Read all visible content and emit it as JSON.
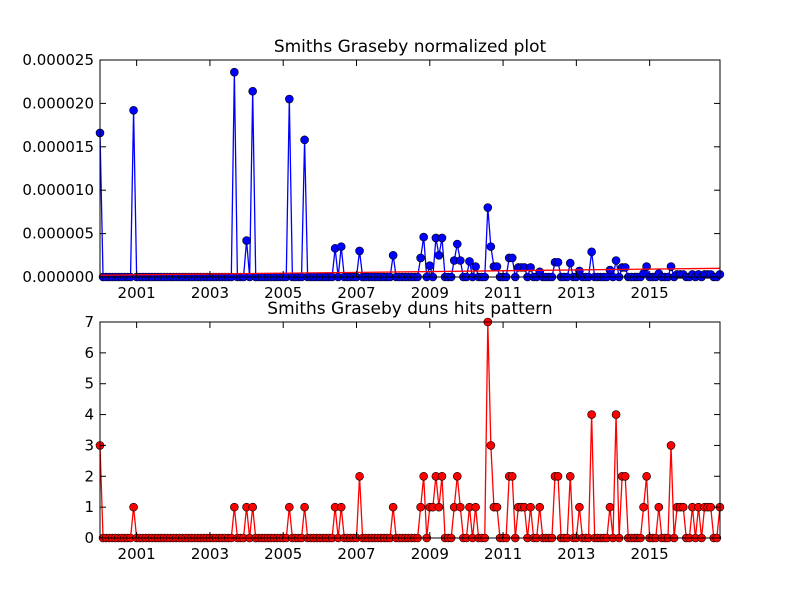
{
  "chart_data": [
    {
      "type": "line",
      "title": "Smiths Graseby normalized plot",
      "xlabel": "",
      "ylabel": "",
      "xlim": [
        2000.0,
        2016.92
      ],
      "ylim": [
        0,
        2.5e-05
      ],
      "grid": false,
      "x_tick_labels": [
        "2001",
        "2003",
        "2005",
        "2007",
        "2009",
        "2011",
        "2013",
        "2015"
      ],
      "y_tick_labels": [
        "0.000000",
        "0.000005",
        "0.000010",
        "0.000015",
        "0.000020",
        "0.000025"
      ],
      "series": [
        {
          "color": "#0000ff",
          "marker": "circle",
          "points": [
            [
              2000.0,
              1.66e-05
            ],
            [
              2000.92,
              1.92e-05
            ],
            [
              2003.67,
              2.36e-05
            ],
            [
              2004.0,
              4.2e-06
            ],
            [
              2004.17,
              2.14e-05
            ],
            [
              2005.17,
              2.05e-05
            ],
            [
              2005.58,
              1.58e-05
            ],
            [
              2006.42,
              3.3e-06
            ],
            [
              2006.58,
              3.5e-06
            ],
            [
              2007.08,
              3e-06
            ],
            [
              2008.0,
              2.5e-06
            ],
            [
              2008.75,
              2.2e-06
            ],
            [
              2008.83,
              4.6e-06
            ],
            [
              2009.0,
              1.3e-06
            ],
            [
              2009.17,
              4.5e-06
            ],
            [
              2009.25,
              2.5e-06
            ],
            [
              2009.33,
              4.5e-06
            ],
            [
              2009.67,
              1.9e-06
            ],
            [
              2009.75,
              3.8e-06
            ],
            [
              2009.83,
              1.9e-06
            ],
            [
              2010.08,
              1.8e-06
            ],
            [
              2010.25,
              1.2e-06
            ],
            [
              2010.58,
              8e-06
            ],
            [
              2010.67,
              3.5e-06
            ],
            [
              2010.75,
              1.2e-06
            ],
            [
              2010.83,
              1.2e-06
            ],
            [
              2011.17,
              2.2e-06
            ],
            [
              2011.25,
              2.2e-06
            ],
            [
              2011.42,
              1.1e-06
            ],
            [
              2011.5,
              1.1e-06
            ],
            [
              2011.58,
              1.1e-06
            ],
            [
              2011.75,
              1.1e-06
            ],
            [
              2012.0,
              6e-07
            ],
            [
              2012.42,
              1.7e-06
            ],
            [
              2012.5,
              1.7e-06
            ],
            [
              2012.83,
              1.6e-06
            ],
            [
              2013.08,
              7e-07
            ],
            [
              2013.42,
              2.9e-06
            ],
            [
              2013.92,
              8e-07
            ],
            [
              2014.08,
              1.9e-06
            ],
            [
              2014.25,
              1.1e-06
            ],
            [
              2014.33,
              1.1e-06
            ],
            [
              2014.83,
              4e-07
            ],
            [
              2014.92,
              1.2e-06
            ],
            [
              2015.25,
              4e-07
            ],
            [
              2015.58,
              1.2e-06
            ],
            [
              2015.75,
              3e-07
            ],
            [
              2015.83,
              3e-07
            ],
            [
              2015.92,
              3e-07
            ],
            [
              2016.17,
              3e-07
            ],
            [
              2016.33,
              3e-07
            ],
            [
              2016.5,
              3e-07
            ],
            [
              2016.58,
              3e-07
            ],
            [
              2016.67,
              3e-07
            ],
            [
              2016.92,
              3e-07
            ]
          ]
        },
        {
          "color": "#ff0000",
          "marker": "none",
          "points": [
            [
              2000.0,
              2e-07
            ],
            [
              2016.92,
              1e-06
            ]
          ]
        }
      ]
    },
    {
      "type": "line",
      "title": "Smiths Graseby duns hits pattern",
      "xlabel": "",
      "ylabel": "",
      "xlim": [
        2000.0,
        2016.92
      ],
      "ylim": [
        0,
        7
      ],
      "grid": false,
      "x_tick_labels": [
        "2001",
        "2003",
        "2005",
        "2007",
        "2009",
        "2011",
        "2013",
        "2015"
      ],
      "y_tick_labels": [
        "0",
        "1",
        "2",
        "3",
        "4",
        "5",
        "6",
        "7"
      ],
      "series": [
        {
          "color": "#ff0000",
          "marker": "circle",
          "points": [
            [
              2000.0,
              3
            ],
            [
              2000.92,
              1
            ],
            [
              2003.67,
              1
            ],
            [
              2004.0,
              1
            ],
            [
              2004.17,
              1
            ],
            [
              2005.17,
              1
            ],
            [
              2005.58,
              1
            ],
            [
              2006.42,
              1
            ],
            [
              2006.58,
              1
            ],
            [
              2007.08,
              2
            ],
            [
              2008.0,
              1
            ],
            [
              2008.75,
              1
            ],
            [
              2008.83,
              2
            ],
            [
              2009.0,
              1
            ],
            [
              2009.08,
              1
            ],
            [
              2009.17,
              2
            ],
            [
              2009.25,
              1
            ],
            [
              2009.33,
              2
            ],
            [
              2009.67,
              1
            ],
            [
              2009.75,
              2
            ],
            [
              2009.83,
              1
            ],
            [
              2010.08,
              1
            ],
            [
              2010.25,
              1
            ],
            [
              2010.58,
              7
            ],
            [
              2010.67,
              3
            ],
            [
              2010.75,
              1
            ],
            [
              2010.83,
              1
            ],
            [
              2011.17,
              2
            ],
            [
              2011.25,
              2
            ],
            [
              2011.42,
              1
            ],
            [
              2011.5,
              1
            ],
            [
              2011.58,
              1
            ],
            [
              2011.75,
              1
            ],
            [
              2012.0,
              1
            ],
            [
              2012.42,
              2
            ],
            [
              2012.5,
              2
            ],
            [
              2012.83,
              2
            ],
            [
              2013.08,
              1
            ],
            [
              2013.42,
              4
            ],
            [
              2013.92,
              1
            ],
            [
              2014.08,
              4
            ],
            [
              2014.25,
              2
            ],
            [
              2014.33,
              2
            ],
            [
              2014.83,
              1
            ],
            [
              2014.92,
              2
            ],
            [
              2015.25,
              1
            ],
            [
              2015.58,
              3
            ],
            [
              2015.75,
              1
            ],
            [
              2015.83,
              1
            ],
            [
              2015.92,
              1
            ],
            [
              2016.17,
              1
            ],
            [
              2016.33,
              1
            ],
            [
              2016.5,
              1
            ],
            [
              2016.58,
              1
            ],
            [
              2016.67,
              1
            ],
            [
              2016.92,
              1
            ]
          ]
        }
      ]
    }
  ]
}
